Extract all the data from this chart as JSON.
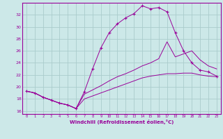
{
  "xlabel": "Windchill (Refroidissement éolien,°C)",
  "background_color": "#cce8e8",
  "grid_color": "#aacccc",
  "line_color": "#990099",
  "xlim": [
    -0.5,
    23.5
  ],
  "ylim": [
    15.5,
    34
  ],
  "xticks": [
    0,
    1,
    2,
    3,
    4,
    5,
    6,
    7,
    8,
    9,
    10,
    11,
    12,
    13,
    14,
    15,
    16,
    17,
    18,
    19,
    20,
    21,
    22,
    23
  ],
  "yticks": [
    16,
    18,
    20,
    22,
    24,
    26,
    28,
    30,
    32
  ],
  "curve1_x": [
    0,
    1,
    2,
    3,
    4,
    5,
    6,
    7,
    8,
    9,
    10,
    11,
    12,
    13,
    14,
    15,
    16,
    17,
    18,
    19,
    20,
    21,
    22,
    23
  ],
  "curve1_y": [
    19.3,
    19.0,
    18.3,
    17.8,
    17.3,
    17.0,
    16.4,
    19.2,
    23.0,
    26.5,
    29.0,
    30.5,
    31.5,
    32.2,
    33.5,
    33.0,
    33.2,
    32.5,
    29.0,
    26.0,
    24.0,
    22.8,
    22.5,
    21.8
  ],
  "curve2_x": [
    0,
    1,
    2,
    3,
    4,
    5,
    6,
    7,
    8,
    9,
    10,
    11,
    12,
    13,
    14,
    15,
    16,
    17,
    18,
    19,
    20,
    21,
    22,
    23
  ],
  "curve2_y": [
    19.3,
    19.0,
    18.3,
    17.8,
    17.3,
    17.0,
    16.4,
    18.8,
    19.5,
    20.2,
    21.0,
    21.7,
    22.2,
    22.8,
    23.5,
    24.0,
    24.7,
    27.5,
    25.0,
    25.5,
    26.0,
    24.5,
    23.5,
    23.0
  ],
  "curve3_x": [
    0,
    1,
    2,
    3,
    4,
    5,
    6,
    7,
    8,
    9,
    10,
    11,
    12,
    13,
    14,
    15,
    16,
    17,
    18,
    19,
    20,
    21,
    22,
    23
  ],
  "curve3_y": [
    19.3,
    19.0,
    18.3,
    17.8,
    17.3,
    17.0,
    16.4,
    18.0,
    18.5,
    19.0,
    19.5,
    20.0,
    20.5,
    21.0,
    21.5,
    21.8,
    22.0,
    22.2,
    22.2,
    22.3,
    22.3,
    22.0,
    21.8,
    21.7
  ]
}
